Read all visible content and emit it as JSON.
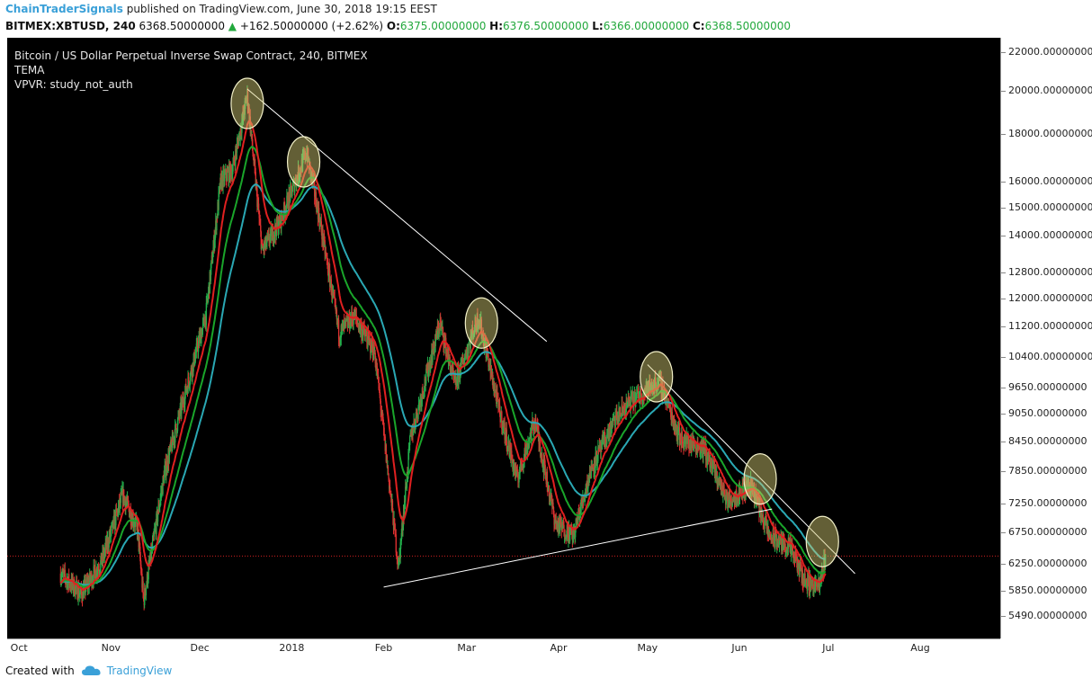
{
  "header": {
    "author": "ChainTraderSignals",
    "published": "published on TradingView.com, June 30, 2018 19:15 EEST"
  },
  "quote": {
    "symbol": "BITMEX:XBTUSD, 240",
    "last": "6368.50000000",
    "change": "+162.50000000 (+2.62%)",
    "o_label": "O:",
    "o": "6375.00000000",
    "h_label": "H:",
    "h": "6376.50000000",
    "l_label": "L:",
    "l": "6366.00000000",
    "c_label": "C:",
    "c": "6368.50000000"
  },
  "legend": {
    "title": "Bitcoin / US Dollar Perpetual Inverse Swap Contract, 240, BITMEX",
    "indicator1": "TEMA",
    "indicator2": "VPVR: study_not_auth"
  },
  "footer": {
    "created": "Created with",
    "brand": "TradingView"
  },
  "chart_data": {
    "type": "candlestick",
    "scale": "log",
    "ylim": [
      5200,
      22800
    ],
    "y_ticks": [
      "22000.00000000",
      "20000.00000000",
      "18000.00000000",
      "16000.00000000",
      "15000.00000000",
      "14000.00000000",
      "12800.00000000",
      "12000.00000000",
      "11200.00000000",
      "10400.00000000",
      "9650.00000000",
      "9050.00000000",
      "8450.00000000",
      "7850.00000000",
      "7250.00000000",
      "6750.00000000",
      "6250.00000000",
      "5850.00000000",
      "5490.00000000"
    ],
    "x_ticks": [
      "Oct",
      "Nov",
      "Dec",
      "2018",
      "Feb",
      "Mar",
      "Apr",
      "May",
      "Jun",
      "Jul",
      "Aug"
    ],
    "current_price": 6368.5,
    "colors": {
      "up": "#22b14c",
      "down": "#e03030",
      "ema_fast": "#e02020",
      "ema_mid": "#1aa52a",
      "ema_slow": "#2aa8b4",
      "annotation": "#f2f0c8",
      "price_line": "#d02020"
    },
    "price_path": [
      [
        "2017-10-15",
        6100
      ],
      [
        "2017-10-22",
        5800
      ],
      [
        "2017-10-29",
        6300
      ],
      [
        "2017-11-05",
        7400
      ],
      [
        "2017-11-10",
        6800
      ],
      [
        "2017-11-12",
        5700
      ],
      [
        "2017-11-19",
        7800
      ],
      [
        "2017-11-26",
        9500
      ],
      [
        "2017-12-03",
        11500
      ],
      [
        "2017-12-08",
        16000
      ],
      [
        "2017-12-12",
        16500
      ],
      [
        "2017-12-17",
        19800
      ],
      [
        "2017-12-22",
        13500
      ],
      [
        "2017-12-28",
        14500
      ],
      [
        "2018-01-06",
        17200
      ],
      [
        "2018-01-10",
        14800
      ],
      [
        "2018-01-17",
        11000
      ],
      [
        "2018-01-22",
        11500
      ],
      [
        "2018-01-29",
        10500
      ],
      [
        "2018-02-06",
        6200
      ],
      [
        "2018-02-10",
        8500
      ],
      [
        "2018-02-20",
        11300
      ],
      [
        "2018-02-25",
        9700
      ],
      [
        "2018-03-05",
        11500
      ],
      [
        "2018-03-12",
        9100
      ],
      [
        "2018-03-18",
        7700
      ],
      [
        "2018-03-24",
        8900
      ],
      [
        "2018-03-31",
        6900
      ],
      [
        "2018-04-06",
        6700
      ],
      [
        "2018-04-12",
        7900
      ],
      [
        "2018-04-20",
        8900
      ],
      [
        "2018-04-25",
        9300
      ],
      [
        "2018-05-05",
        9800
      ],
      [
        "2018-05-12",
        8500
      ],
      [
        "2018-05-20",
        8300
      ],
      [
        "2018-05-28",
        7300
      ],
      [
        "2018-06-05",
        7600
      ],
      [
        "2018-06-11",
        6700
      ],
      [
        "2018-06-18",
        6500
      ],
      [
        "2018-06-23",
        6000
      ],
      [
        "2018-06-28",
        5900
      ],
      [
        "2018-06-30",
        6368.5
      ]
    ],
    "trendlines": [
      {
        "from": [
          "2017-12-17",
          20100
        ],
        "to": [
          "2018-03-28",
          10800
        ]
      },
      {
        "from": [
          "2018-05-01",
          10200
        ],
        "to": [
          "2018-07-10",
          6100
        ]
      },
      {
        "from": [
          "2018-02-01",
          5900
        ],
        "to": [
          "2018-06-12",
          7150
        ]
      }
    ],
    "circles": [
      {
        "date": "2017-12-17",
        "price": 19400
      },
      {
        "date": "2018-01-05",
        "price": 16800
      },
      {
        "date": "2018-03-06",
        "price": 11300
      },
      {
        "date": "2018-05-04",
        "price": 9900
      },
      {
        "date": "2018-06-08",
        "price": 7700
      },
      {
        "date": "2018-06-29",
        "price": 6600
      }
    ]
  }
}
